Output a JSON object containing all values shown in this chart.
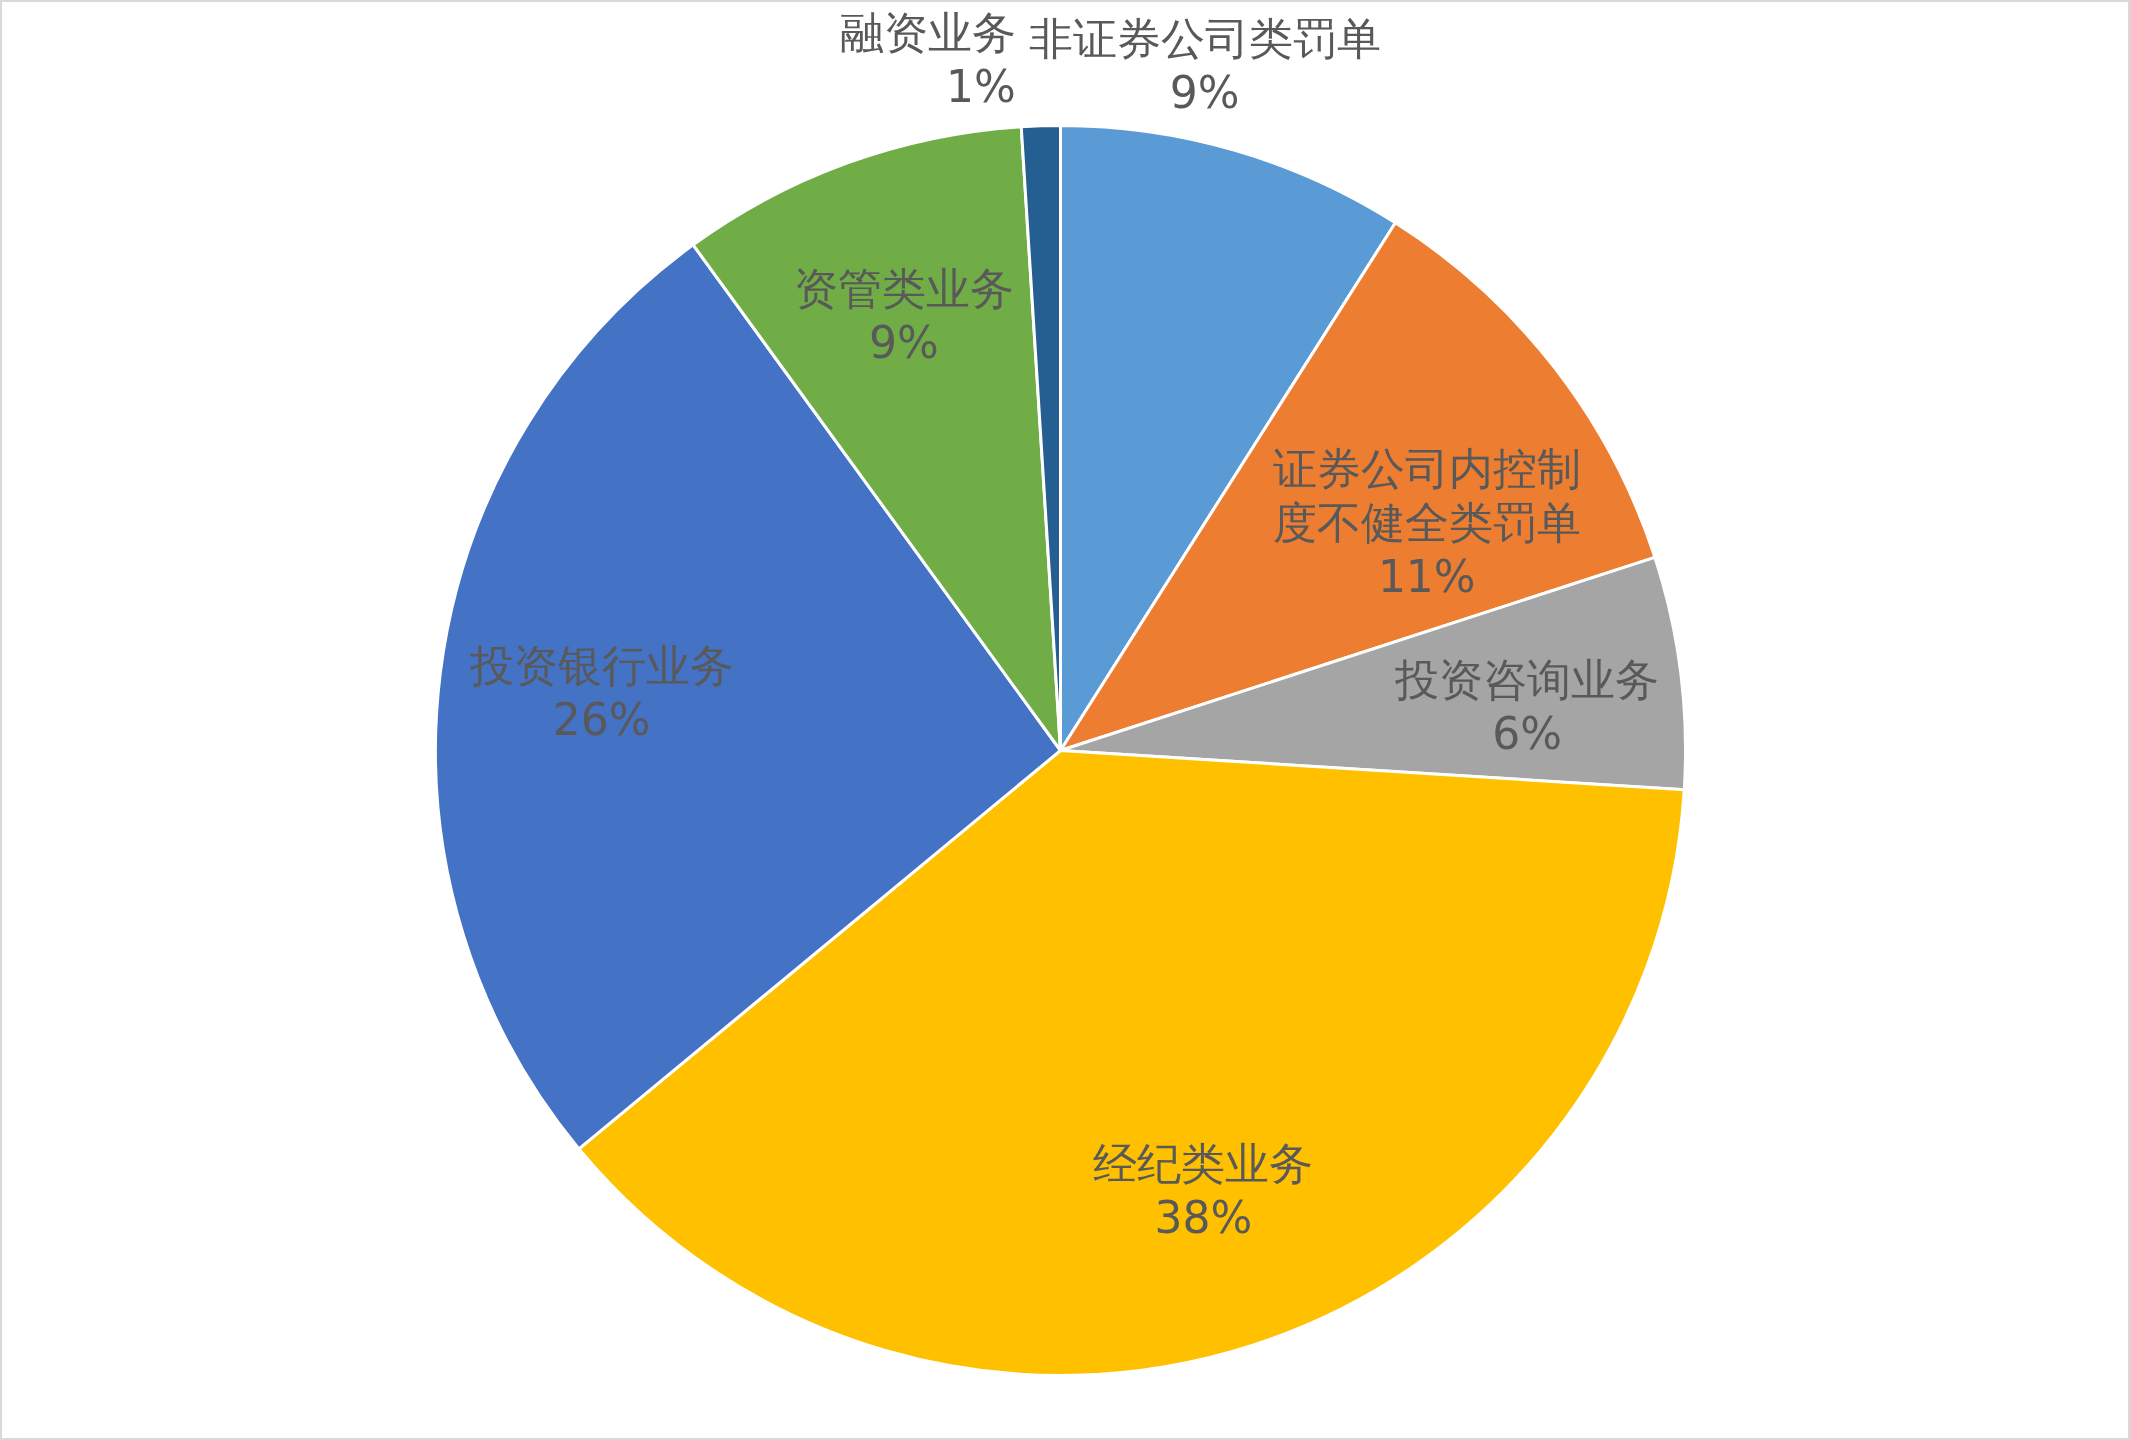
{
  "chart_data": {
    "type": "pie",
    "categories": [
      "非证券公司类罚单",
      "证券公司内控制度不健全类罚单",
      "投资咨询业务",
      "经纪类业务",
      "投资银行业务",
      "资管类业务",
      "融资业务"
    ],
    "values": [
      9,
      11,
      6,
      38,
      26,
      9,
      1
    ],
    "colors": [
      "#5b9bd5",
      "#ed7d31",
      "#a5a5a5",
      "#ffc000",
      "#4472c4",
      "#70ad47",
      "#255e91"
    ],
    "value_labels": [
      "9%",
      "11%",
      "6%",
      "38%",
      "26%",
      "9%",
      "1%"
    ]
  }
}
